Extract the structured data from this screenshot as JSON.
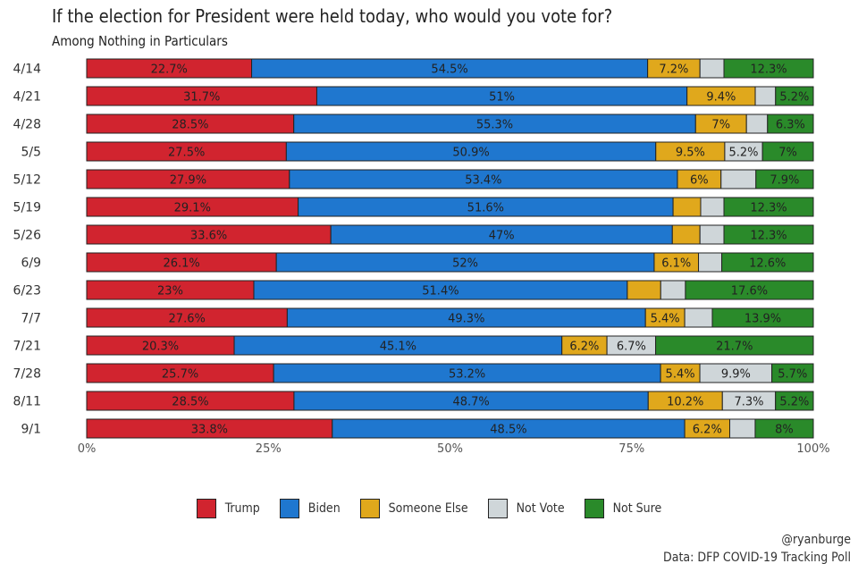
{
  "header": {
    "title": "If the election for President were held today, who would you vote for?",
    "subtitle": "Among Nothing in Particulars"
  },
  "credits": {
    "handle": "@ryanburge",
    "source": "Data: DFP COVID-19 Tracking Poll"
  },
  "colors": {
    "trump": "#d1242f",
    "biden": "#1f77cf",
    "someone_else": "#e0a81c",
    "not_vote": "#cfd6d9",
    "not_sure": "#2a8a2a"
  },
  "chart_data": {
    "type": "bar",
    "orientation": "horizontal",
    "stacked": true,
    "percent": true,
    "categories": [
      "4/14",
      "4/21",
      "4/28",
      "5/5",
      "5/12",
      "5/19",
      "5/26",
      "6/9",
      "6/23",
      "7/7",
      "7/21",
      "7/28",
      "8/11",
      "9/1"
    ],
    "series": [
      {
        "name": "Trump",
        "color_key": "trump",
        "values": [
          22.7,
          31.7,
          28.5,
          27.5,
          27.9,
          29.1,
          33.6,
          26.1,
          23,
          27.6,
          20.3,
          25.7,
          28.5,
          33.8
        ],
        "labels": [
          "22.7%",
          "31.7%",
          "28.5%",
          "27.5%",
          "27.9%",
          "29.1%",
          "33.6%",
          "26.1%",
          "23%",
          "27.6%",
          "20.3%",
          "25.7%",
          "28.5%",
          "33.8%"
        ]
      },
      {
        "name": "Biden",
        "color_key": "biden",
        "values": [
          54.5,
          51,
          55.3,
          50.9,
          53.4,
          51.6,
          47,
          52,
          51.4,
          49.3,
          45.1,
          53.2,
          48.7,
          48.5
        ],
        "labels": [
          "54.5%",
          "51%",
          "55.3%",
          "50.9%",
          "53.4%",
          "51.6%",
          "47%",
          "52%",
          "51.4%",
          "49.3%",
          "45.1%",
          "53.2%",
          "48.7%",
          "48.5%"
        ]
      },
      {
        "name": "Someone Else",
        "color_key": "someone_else",
        "values": [
          7.2,
          9.4,
          7,
          9.5,
          6,
          3.8,
          3.8,
          6.1,
          4.6,
          5.4,
          6.2,
          5.4,
          10.2,
          6.2
        ],
        "labels": [
          "7.2%",
          "9.4%",
          "7%",
          "9.5%",
          "6%",
          "",
          "",
          "6.1%",
          "",
          "5.4%",
          "6.2%",
          "5.4%",
          "10.2%",
          "6.2%"
        ]
      },
      {
        "name": "Not Vote",
        "color_key": "not_vote",
        "values": [
          3.3,
          2.8,
          2.9,
          5.2,
          4.8,
          3.2,
          3.3,
          3.2,
          3.4,
          3.8,
          6.7,
          9.9,
          7.3,
          3.5
        ],
        "labels": [
          "",
          "",
          "",
          "5.2%",
          "",
          "",
          "",
          "",
          "",
          "",
          "6.7%",
          "9.9%",
          "7.3%",
          ""
        ]
      },
      {
        "name": "Not Sure",
        "color_key": "not_sure",
        "values": [
          12.3,
          5.2,
          6.3,
          7,
          7.9,
          12.3,
          12.3,
          12.6,
          17.6,
          13.9,
          21.7,
          5.7,
          5.2,
          8
        ],
        "labels": [
          "12.3%",
          "5.2%",
          "6.3%",
          "7%",
          "7.9%",
          "12.3%",
          "12.3%",
          "12.6%",
          "17.6%",
          "13.9%",
          "21.7%",
          "5.7%",
          "5.2%",
          "8%"
        ]
      }
    ],
    "xlim": [
      0,
      100
    ],
    "xticks": [
      "0%",
      "25%",
      "50%",
      "75%",
      "100%"
    ],
    "legend_position": "bottom",
    "grid": false
  }
}
